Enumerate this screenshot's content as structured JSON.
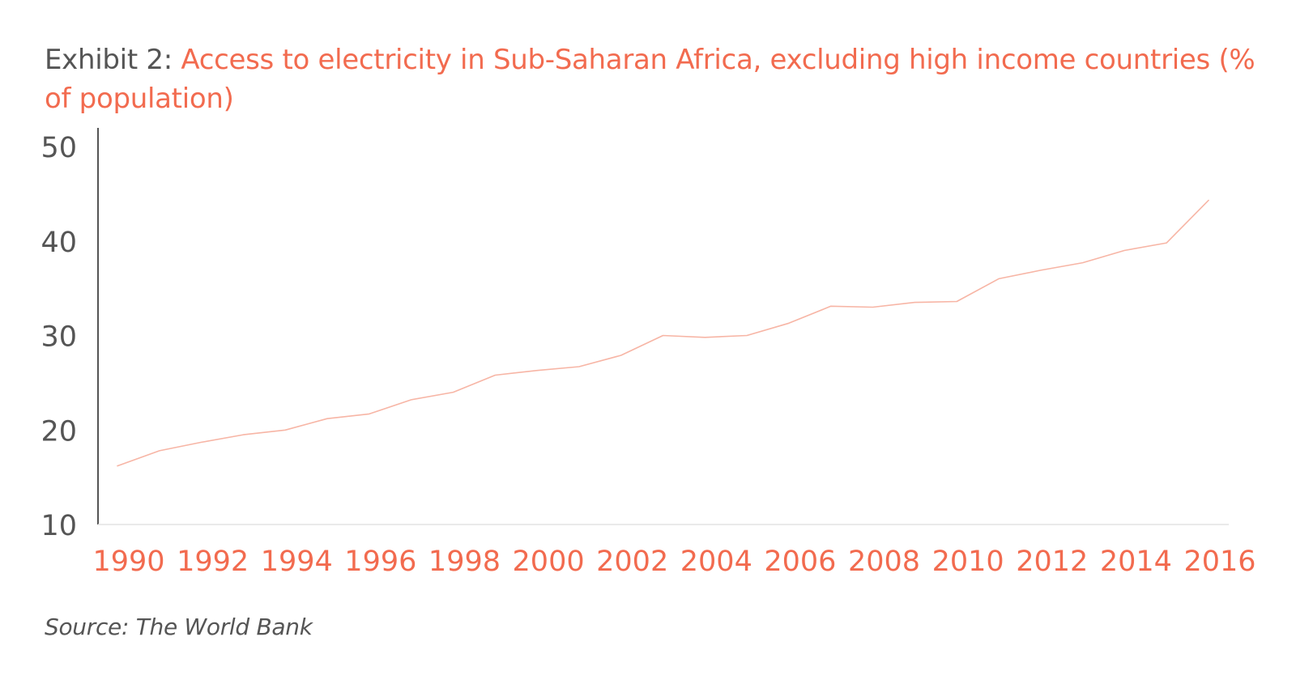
{
  "header": {
    "exhibit_label": "Exhibit 2:",
    "title": "Access to electricity in Sub-Saharan Africa, excluding high income countries (% of population)"
  },
  "footer": {
    "source": "Source: The World Bank"
  },
  "colors": {
    "accent": "#f26b4f",
    "line": "#f7b5a5",
    "axis": "#555555",
    "text_gray": "#555555"
  },
  "chart_data": {
    "type": "line",
    "title": "Access to electricity in Sub-Saharan Africa, excluding high income countries (% of population)",
    "xlabel": "",
    "ylabel": "",
    "x": [
      1990,
      1991,
      1992,
      1993,
      1994,
      1995,
      1996,
      1997,
      1998,
      1999,
      2000,
      2001,
      2002,
      2003,
      2004,
      2005,
      2006,
      2007,
      2008,
      2009,
      2010,
      2011,
      2012,
      2013,
      2014,
      2015,
      2016
    ],
    "series": [
      {
        "values": [
          16.2,
          17.8,
          18.7,
          19.5,
          20.0,
          21.2,
          21.7,
          23.2,
          24.0,
          25.8,
          26.3,
          26.7,
          27.9,
          30.0,
          29.8,
          30.0,
          31.3,
          33.1,
          33.0,
          33.5,
          33.6,
          36.0,
          36.9,
          37.7,
          39.0,
          39.8,
          44.3
        ]
      }
    ],
    "x_tick_labels": [
      "1990",
      "1992",
      "1994",
      "1996",
      "1998",
      "2000",
      "2002",
      "2004",
      "2006",
      "2008",
      "2010",
      "2012",
      "2014",
      "2016"
    ],
    "y_tick_labels": [
      "10",
      "20",
      "30",
      "40",
      "50"
    ],
    "ylim": [
      10,
      50
    ],
    "xlim": [
      1990,
      2016
    ],
    "grid": false,
    "legend": "none"
  }
}
